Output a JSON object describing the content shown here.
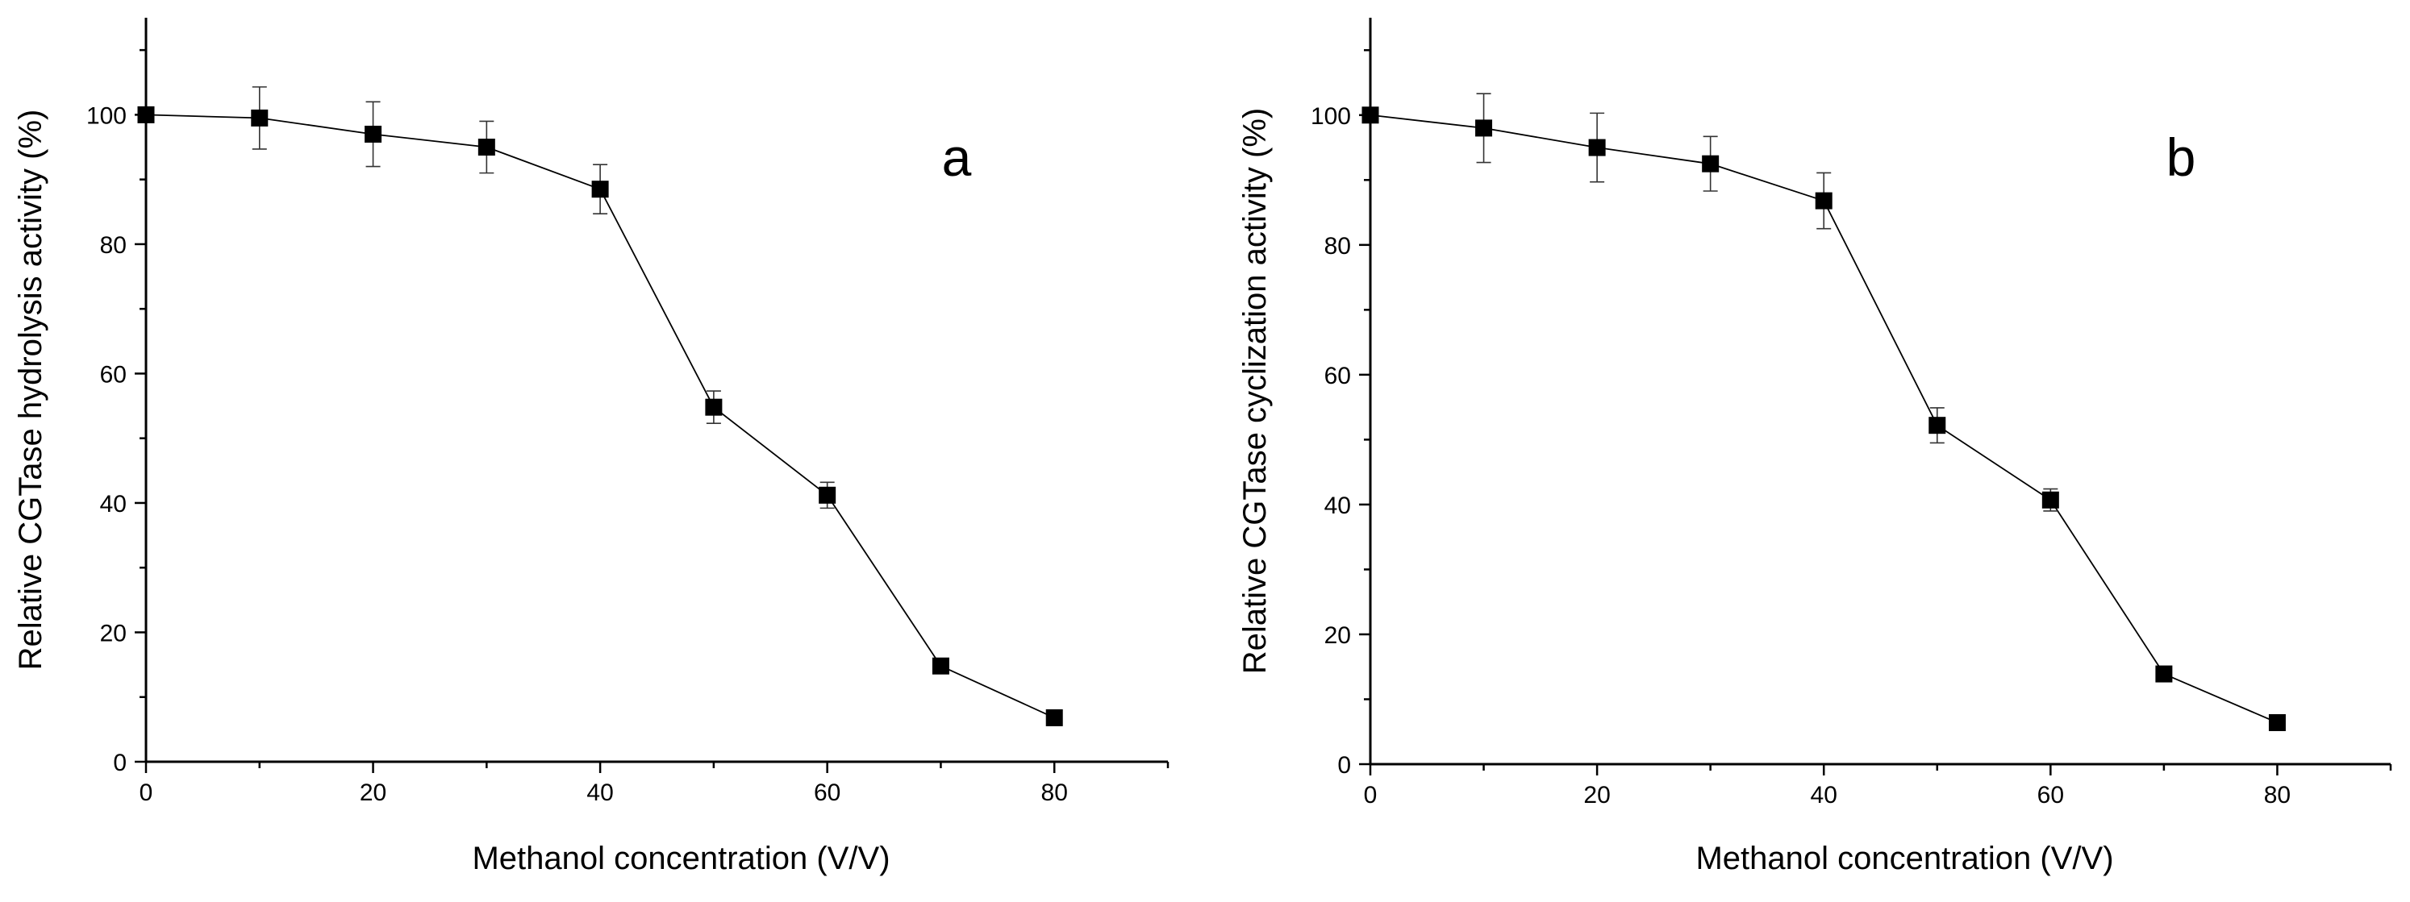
{
  "chart_data": [
    {
      "type": "line",
      "panel_label": "a",
      "xlabel": "Methanol concentration (V/V)",
      "ylabel": "Relative CGTase hydrolysis activity (%)",
      "xlim": [
        0,
        90
      ],
      "ylim": [
        0,
        115
      ],
      "xticks": [
        0,
        20,
        40,
        60,
        80
      ],
      "yticks": [
        0,
        20,
        40,
        60,
        80,
        100
      ],
      "marker": "square",
      "color": "#000000",
      "grid": false,
      "legend": "none",
      "series": [
        {
          "x": [
            0,
            10,
            20,
            30,
            40,
            50,
            60,
            70,
            80
          ],
          "y": [
            100,
            99.5,
            97,
            95,
            88.5,
            54.8,
            41.2,
            14.8,
            6.8
          ],
          "error": [
            0,
            4.8,
            5,
            4,
            3.8,
            2.5,
            2,
            0,
            0
          ]
        }
      ]
    },
    {
      "type": "line",
      "panel_label": "b",
      "xlabel": "Methanol concentration (V/V)",
      "ylabel": "Relative CGTase cyclization activity (%)",
      "xlim": [
        0,
        90
      ],
      "ylim": [
        0,
        115
      ],
      "xticks": [
        0,
        20,
        40,
        60,
        80
      ],
      "yticks": [
        0,
        20,
        40,
        60,
        80,
        100
      ],
      "marker": "square",
      "color": "#000000",
      "grid": false,
      "legend": "none",
      "series": [
        {
          "x": [
            0,
            10,
            20,
            30,
            40,
            50,
            60,
            70,
            80
          ],
          "y": [
            100,
            98,
            95,
            92.5,
            86.8,
            52.2,
            40.7,
            13.9,
            6.4
          ],
          "error": [
            0,
            5.3,
            5.3,
            4.2,
            4.3,
            2.7,
            1.7,
            0,
            0
          ]
        }
      ]
    }
  ]
}
